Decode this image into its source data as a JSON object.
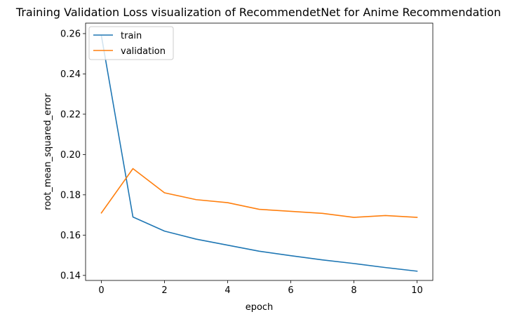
{
  "chart_data": {
    "type": "line",
    "title": "Training Validation Loss visualization of RecommendetNet for Anime Recommendation",
    "xlabel": "epoch",
    "ylabel": "root_mean_squared_error",
    "xlim": [
      -0.5,
      10.5
    ],
    "ylim": [
      0.1375,
      0.2652
    ],
    "xticks": [
      0,
      2,
      4,
      6,
      8,
      10
    ],
    "yticks": [
      0.14,
      0.16,
      0.18,
      0.2,
      0.22,
      0.24,
      0.26
    ],
    "ytick_labels": [
      "0.14",
      "0.16",
      "0.18",
      "0.20",
      "0.22",
      "0.24",
      "0.26"
    ],
    "grid": false,
    "legend_position": "upper left",
    "x": [
      0,
      1,
      2,
      3,
      4,
      5,
      6,
      7,
      8,
      9,
      10
    ],
    "series": [
      {
        "name": "train",
        "color": "#1f77b4",
        "values": [
          0.259,
          0.169,
          0.162,
          0.158,
          0.155,
          0.152,
          0.1498,
          0.1477,
          0.1459,
          0.1439,
          0.1421
        ]
      },
      {
        "name": "validation",
        "color": "#ff7f0e",
        "values": [
          0.171,
          0.193,
          0.181,
          0.1776,
          0.1761,
          0.1728,
          0.1718,
          0.1708,
          0.1688,
          0.1697,
          0.1688
        ]
      }
    ]
  }
}
